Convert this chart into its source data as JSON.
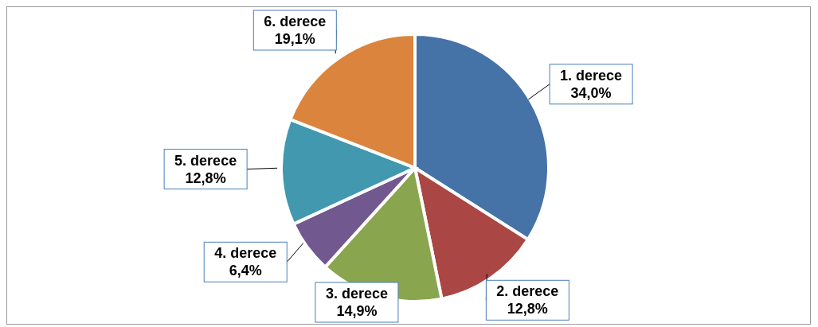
{
  "chart_data": {
    "type": "pie",
    "categories": [
      "1. derece",
      "2. derece",
      "3. derece",
      "4. derece",
      "5. derece",
      "6. derece"
    ],
    "values": [
      34.0,
      12.8,
      14.9,
      6.4,
      12.8,
      19.1
    ],
    "value_labels": [
      "34,0%",
      "12,8%",
      "14,9%",
      "6,4%",
      "12,8%",
      "19,1%"
    ],
    "colors": [
      "#4572a7",
      "#aa4643",
      "#89a54e",
      "#71588f",
      "#4198af",
      "#db843d"
    ]
  }
}
